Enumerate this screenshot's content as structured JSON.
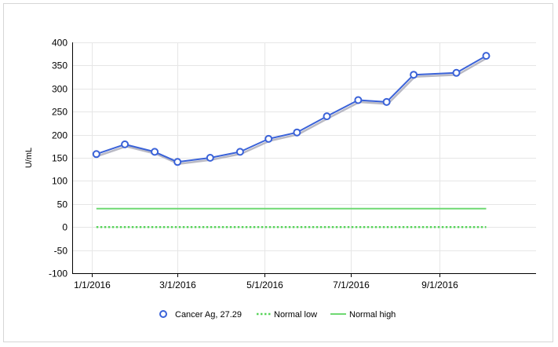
{
  "chart_data": {
    "type": "line",
    "title": "",
    "xlabel": "",
    "ylabel": "U/mL",
    "ylim": [
      -100,
      400
    ],
    "yticks": [
      -100,
      -50,
      0,
      50,
      100,
      150,
      200,
      250,
      300,
      350,
      400
    ],
    "xlim": [
      "2015-12-18",
      "2016-11-08"
    ],
    "xticks": [
      "2016-01-01",
      "2016-03-01",
      "2016-05-01",
      "2016-07-01",
      "2016-09-01"
    ],
    "xtick_labels": [
      "1/1/2016",
      "3/1/2016",
      "5/1/2016",
      "7/1/2016",
      "9/1/2016"
    ],
    "grid": true,
    "legend_position": "bottom",
    "series": [
      {
        "name": "Cancer Ag, 27.29",
        "style": "line-markers",
        "color": "#3a62d8",
        "x": [
          "2016-01-04",
          "2016-01-24",
          "2016-02-14",
          "2016-03-01",
          "2016-03-24",
          "2016-04-14",
          "2016-05-04",
          "2016-05-24",
          "2016-06-14",
          "2016-07-06",
          "2016-07-26",
          "2016-08-14",
          "2016-09-13",
          "2016-10-04"
        ],
        "values": [
          158,
          179,
          163,
          141,
          150,
          163,
          191,
          205,
          240,
          275,
          271,
          330,
          334,
          371
        ]
      },
      {
        "name": "Normal low",
        "style": "dotted",
        "color": "#58d45a",
        "x": [
          "2016-01-04",
          "2016-10-04"
        ],
        "values": [
          0,
          0
        ]
      },
      {
        "name": "Normal high",
        "style": "solid",
        "color": "#6fd872",
        "x": [
          "2016-01-04",
          "2016-10-04"
        ],
        "values": [
          40,
          40
        ]
      }
    ]
  }
}
